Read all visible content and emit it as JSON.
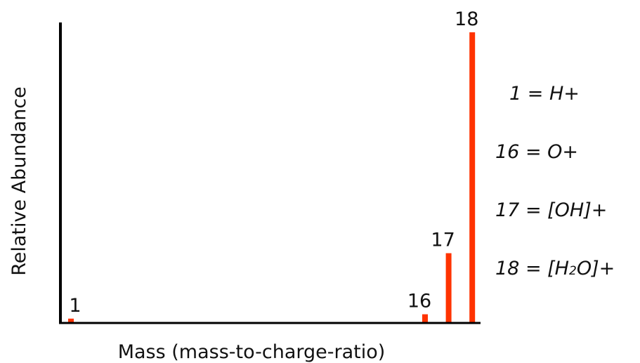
{
  "chart_data": {
    "type": "bar",
    "title": "",
    "xlabel": "Mass (mass-to-charge-ratio)",
    "ylabel": "Relative Abundance",
    "x_range": [
      0,
      22
    ],
    "ylim": [
      0,
      100
    ],
    "grid": false,
    "bar_color": "#ff3300",
    "axis_color": "#000000",
    "bars": [
      {
        "x": 1,
        "value": 1.5,
        "label": "1"
      },
      {
        "x": 16,
        "value": 3,
        "label": "16"
      },
      {
        "x": 17,
        "value": 24,
        "label": "17"
      },
      {
        "x": 18,
        "value": 100,
        "label": "18"
      }
    ],
    "legend": {
      "placement": "right",
      "items": [
        {
          "text": "1 = H+"
        },
        {
          "text": "16 = O+"
        },
        {
          "text": "17 = [OH]+"
        },
        {
          "pre": "18 = [H",
          "sub": "2",
          "post": "O]+"
        }
      ]
    }
  }
}
